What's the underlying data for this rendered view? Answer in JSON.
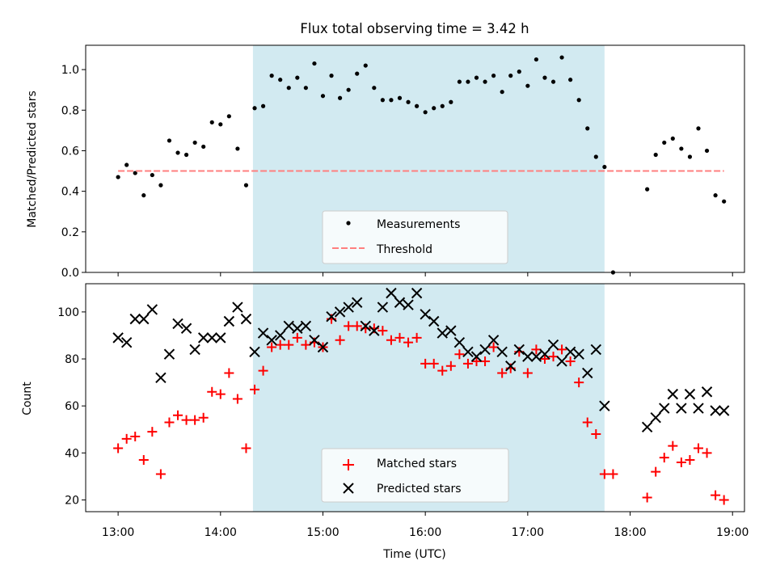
{
  "chart_data": [
    {
      "type": "scatter",
      "title": "Flux total observing time = 3.42 h",
      "ylabel": "Matched/Predicted stars",
      "xlim": [
        "12:41",
        "19:07"
      ],
      "ylim": [
        0,
        1.12
      ],
      "yticks": [
        "0.0",
        "0.2",
        "0.4",
        "0.6",
        "0.8",
        "1.0"
      ],
      "shaded_interval": [
        "14:19",
        "17:45"
      ],
      "shade_color": "#add8e6",
      "series": [
        {
          "name": "Measurements",
          "marker": "dot",
          "color": "#000000",
          "x": [
            "13:00",
            "13:05",
            "13:10",
            "13:15",
            "13:20",
            "13:25",
            "13:30",
            "13:35",
            "13:40",
            "13:45",
            "13:50",
            "13:55",
            "14:00",
            "14:05",
            "14:10",
            "14:15",
            "14:20",
            "14:25",
            "14:30",
            "14:35",
            "14:40",
            "14:45",
            "14:50",
            "14:55",
            "15:00",
            "15:05",
            "15:10",
            "15:15",
            "15:20",
            "15:25",
            "15:30",
            "15:35",
            "15:40",
            "15:45",
            "15:50",
            "15:55",
            "16:00",
            "16:05",
            "16:10",
            "16:15",
            "16:20",
            "16:25",
            "16:30",
            "16:35",
            "16:40",
            "16:45",
            "16:50",
            "16:55",
            "17:00",
            "17:05",
            "17:10",
            "17:15",
            "17:20",
            "17:25",
            "17:30",
            "17:35",
            "17:40",
            "17:45",
            "17:50",
            "18:10",
            "18:15",
            "18:20",
            "18:25",
            "18:30",
            "18:35",
            "18:40",
            "18:45",
            "18:50",
            "18:55"
          ],
          "y": [
            0.47,
            0.53,
            0.49,
            0.38,
            0.48,
            0.43,
            0.65,
            0.59,
            0.58,
            0.64,
            0.62,
            0.74,
            0.73,
            0.77,
            0.61,
            0.43,
            0.81,
            0.82,
            0.97,
            0.95,
            0.91,
            0.96,
            0.91,
            1.03,
            0.87,
            0.97,
            0.86,
            0.9,
            0.98,
            1.02,
            0.91,
            0.85,
            0.85,
            0.86,
            0.84,
            0.82,
            0.79,
            0.81,
            0.82,
            0.84,
            0.94,
            0.94,
            0.96,
            0.94,
            0.97,
            0.89,
            0.97,
            0.99,
            0.92,
            1.05,
            0.96,
            0.94,
            1.06,
            0.95,
            0.85,
            0.71,
            0.57,
            0.52,
            0.0,
            0.41,
            0.58,
            0.64,
            0.66,
            0.61,
            0.57,
            0.71,
            0.6,
            0.38,
            0.35
          ]
        },
        {
          "name": "Threshold",
          "marker": "dashed-line",
          "color": "#ff7f7f",
          "x": [
            "13:00",
            "18:55"
          ],
          "y": [
            0.5,
            0.5
          ]
        }
      ],
      "legend": "lower center"
    },
    {
      "type": "scatter",
      "xlabel": "Time (UTC)",
      "ylabel": "Count",
      "xlim": [
        "12:41",
        "19:07"
      ],
      "ylim": [
        15,
        112
      ],
      "xticks": [
        "13:00",
        "14:00",
        "15:00",
        "16:00",
        "17:00",
        "18:00",
        "19:00"
      ],
      "yticks": [
        "20",
        "40",
        "60",
        "80",
        "100"
      ],
      "shaded_interval": [
        "14:19",
        "17:45"
      ],
      "shade_color": "#add8e6",
      "series": [
        {
          "name": "Matched stars",
          "marker": "plus",
          "color": "#ff0000",
          "x": [
            "13:00",
            "13:05",
            "13:10",
            "13:15",
            "13:20",
            "13:25",
            "13:30",
            "13:35",
            "13:40",
            "13:45",
            "13:50",
            "13:55",
            "14:00",
            "14:05",
            "14:10",
            "14:15",
            "14:20",
            "14:25",
            "14:30",
            "14:35",
            "14:40",
            "14:45",
            "14:50",
            "14:55",
            "15:00",
            "15:05",
            "15:10",
            "15:15",
            "15:20",
            "15:25",
            "15:30",
            "15:35",
            "15:40",
            "15:45",
            "15:50",
            "15:55",
            "16:00",
            "16:05",
            "16:10",
            "16:15",
            "16:20",
            "16:25",
            "16:30",
            "16:35",
            "16:40",
            "16:45",
            "16:50",
            "16:55",
            "17:00",
            "17:05",
            "17:10",
            "17:15",
            "17:20",
            "17:25",
            "17:30",
            "17:35",
            "17:40",
            "17:45",
            "17:50",
            "18:10",
            "18:15",
            "18:20",
            "18:25",
            "18:30",
            "18:35",
            "18:40",
            "18:45",
            "18:50",
            "18:55"
          ],
          "y": [
            42,
            46,
            47,
            37,
            49,
            31,
            53,
            56,
            54,
            54,
            55,
            66,
            65,
            74,
            63,
            42,
            67,
            75,
            85,
            86,
            86,
            89,
            86,
            87,
            85,
            97,
            88,
            94,
            94,
            93,
            93,
            92,
            88,
            89,
            87,
            89,
            78,
            78,
            75,
            77,
            82,
            78,
            79,
            79,
            85,
            74,
            76,
            83,
            74,
            84,
            80,
            81,
            84,
            79,
            70,
            53,
            48,
            31,
            31,
            21,
            32,
            38,
            43,
            36,
            37,
            42,
            40,
            22,
            20
          ]
        },
        {
          "name": "Predicted stars",
          "marker": "x",
          "color": "#000000",
          "x": [
            "13:00",
            "13:05",
            "13:10",
            "13:15",
            "13:20",
            "13:25",
            "13:30",
            "13:35",
            "13:40",
            "13:45",
            "13:50",
            "13:55",
            "14:00",
            "14:05",
            "14:10",
            "14:15",
            "14:20",
            "14:25",
            "14:30",
            "14:35",
            "14:40",
            "14:45",
            "14:50",
            "14:55",
            "15:00",
            "15:05",
            "15:10",
            "15:15",
            "15:20",
            "15:25",
            "15:30",
            "15:35",
            "15:40",
            "15:45",
            "15:50",
            "15:55",
            "16:00",
            "16:05",
            "16:10",
            "16:15",
            "16:20",
            "16:25",
            "16:30",
            "16:35",
            "16:40",
            "16:45",
            "16:50",
            "16:55",
            "17:00",
            "17:05",
            "17:10",
            "17:15",
            "17:20",
            "17:25",
            "17:30",
            "17:35",
            "17:40",
            "17:45",
            "18:10",
            "18:15",
            "18:20",
            "18:25",
            "18:30",
            "18:35",
            "18:40",
            "18:45",
            "18:50",
            "18:55"
          ],
          "y": [
            89,
            87,
            97,
            97,
            101,
            72,
            82,
            95,
            93,
            84,
            89,
            89,
            89,
            96,
            102,
            97,
            83,
            91,
            88,
            90,
            94,
            93,
            94,
            88,
            85,
            98,
            100,
            102,
            104,
            94,
            92,
            102,
            108,
            104,
            103,
            108,
            99,
            96,
            91,
            92,
            87,
            83,
            81,
            84,
            88,
            83,
            77,
            84,
            81,
            81,
            82,
            86,
            79,
            83,
            82,
            74,
            84,
            60,
            51,
            55,
            59,
            65,
            59,
            65,
            59,
            66,
            58,
            58
          ]
        }
      ],
      "legend": "lower center"
    }
  ]
}
